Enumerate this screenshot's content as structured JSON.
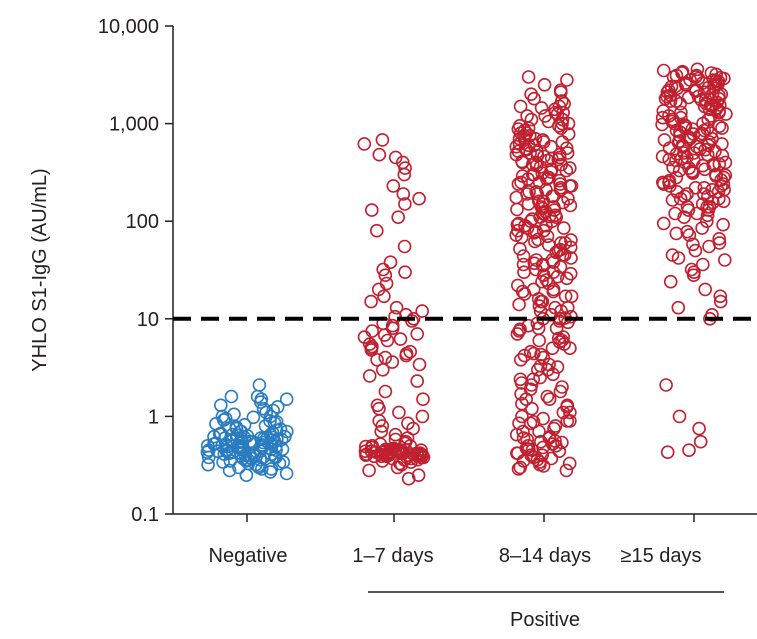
{
  "chart_data": {
    "type": "scatter",
    "y_scale": "log",
    "ylabel": "YHLO S1-IgG (AU/mL)",
    "xlabel": "",
    "ylim": [
      0.1,
      10000
    ],
    "y_ticks": [
      0.1,
      1,
      10,
      100,
      1000,
      10000
    ],
    "y_tick_labels": [
      "0.1",
      "1",
      "10",
      "100",
      "1,000",
      "10,000"
    ],
    "grid": false,
    "legend": "none",
    "threshold": 10,
    "categories": [
      "Negative",
      "1–7 days",
      "8–14 days",
      "≥15 days"
    ],
    "group_label": "Positive",
    "group_categories": [
      "1–7 days",
      "8–14 days",
      "≥15 days"
    ],
    "colors": {
      "negative": "#2a7cc0",
      "positive": "#c0202f",
      "threshold": "#000000",
      "axis": "#231f20"
    },
    "series": [
      {
        "category": "Negative",
        "color": "#2a7cc0",
        "values": [
          2.1,
          1.6,
          1.6,
          1.5,
          1.5,
          1.4,
          1.3,
          1.25,
          1.2,
          1.15,
          1.1,
          1.05,
          1.0,
          1.0,
          0.98,
          0.95,
          0.92,
          0.9,
          0.88,
          0.86,
          0.84,
          0.82,
          0.8,
          0.78,
          0.76,
          0.75,
          0.74,
          0.72,
          0.7,
          0.7,
          0.68,
          0.67,
          0.66,
          0.65,
          0.64,
          0.63,
          0.62,
          0.61,
          0.6,
          0.6,
          0.59,
          0.58,
          0.57,
          0.56,
          0.55,
          0.55,
          0.54,
          0.53,
          0.52,
          0.52,
          0.51,
          0.5,
          0.5,
          0.49,
          0.48,
          0.48,
          0.47,
          0.46,
          0.46,
          0.45,
          0.45,
          0.44,
          0.44,
          0.43,
          0.43,
          0.42,
          0.42,
          0.41,
          0.41,
          0.4,
          0.4,
          0.39,
          0.39,
          0.38,
          0.38,
          0.37,
          0.37,
          0.36,
          0.36,
          0.35,
          0.35,
          0.34,
          0.34,
          0.33,
          0.33,
          0.32,
          0.32,
          0.31,
          0.3,
          0.3,
          0.29,
          0.29,
          0.28,
          0.27,
          0.26,
          0.25,
          0.5,
          0.55,
          0.6,
          0.45,
          0.42,
          0.48,
          0.52,
          0.58,
          0.62,
          0.44,
          0.47,
          0.53,
          0.57,
          0.49,
          0.51,
          0.46,
          0.54,
          0.56,
          0.5,
          0.43,
          0.59,
          0.61,
          0.65,
          0.7,
          0.4,
          0.38
        ]
      },
      {
        "category": "1–7 days",
        "color": "#c0202f",
        "values": [
          680,
          620,
          480,
          450,
          400,
          350,
          300,
          230,
          190,
          170,
          150,
          130,
          110,
          80,
          55,
          38,
          32,
          30,
          28,
          23,
          20,
          17,
          15,
          13,
          12,
          11,
          10.5,
          10,
          9.5,
          9,
          8.5,
          8,
          7.5,
          7,
          6.8,
          6.5,
          6.2,
          6,
          5.5,
          5.2,
          5,
          4.8,
          4.6,
          4.4,
          4.2,
          4,
          3.8,
          3.6,
          3.4,
          3,
          2.6,
          2.3,
          1.8,
          1.5,
          1.3,
          1.2,
          1.1,
          1.0,
          0.9,
          0.85,
          0.8,
          0.75,
          0.7,
          0.65,
          0.6,
          0.58,
          0.55,
          0.53,
          0.52,
          0.5,
          0.5,
          0.49,
          0.48,
          0.47,
          0.46,
          0.46,
          0.45,
          0.45,
          0.44,
          0.44,
          0.44,
          0.43,
          0.43,
          0.43,
          0.42,
          0.42,
          0.42,
          0.42,
          0.41,
          0.41,
          0.41,
          0.41,
          0.4,
          0.4,
          0.4,
          0.4,
          0.4,
          0.39,
          0.39,
          0.39,
          0.39,
          0.38,
          0.38,
          0.38,
          0.37,
          0.37,
          0.36,
          0.36,
          0.35,
          0.34,
          0.33,
          0.32,
          0.3,
          0.28,
          0.25,
          0.23,
          0.44,
          0.42,
          0.43,
          0.41,
          0.4,
          0.45,
          0.46,
          0.42,
          0.43,
          0.44
        ]
      },
      {
        "category": "8–14 days",
        "color": "#c0202f",
        "values": [
          3000,
          2800,
          2200,
          2000,
          1800,
          1600,
          1500,
          1400,
          1300,
          1200,
          1100,
          1000,
          950,
          900,
          850,
          800,
          750,
          700,
          680,
          650,
          620,
          600,
          580,
          560,
          540,
          520,
          500,
          480,
          460,
          440,
          420,
          400,
          380,
          360,
          340,
          320,
          300,
          290,
          280,
          270,
          260,
          250,
          240,
          230,
          220,
          210,
          200,
          190,
          180,
          170,
          160,
          150,
          145,
          140,
          135,
          130,
          125,
          120,
          115,
          110,
          105,
          100,
          95,
          90,
          85,
          80,
          76,
          72,
          68,
          64,
          60,
          57,
          54,
          51,
          48,
          45,
          42,
          40,
          38,
          36,
          34,
          32,
          30,
          28,
          26,
          24,
          22,
          20,
          19,
          18,
          17,
          16,
          15,
          14,
          13,
          12,
          11,
          10.5,
          10,
          9.5,
          9,
          8.5,
          8,
          7.5,
          7,
          6.5,
          6,
          5.5,
          5,
          4.6,
          4.2,
          3.8,
          3.4,
          3,
          2.7,
          2.4,
          2.1,
          1.9,
          1.7,
          1.5,
          1.35,
          1.2,
          1.1,
          1,
          0.95,
          0.9,
          0.85,
          0.8,
          0.75,
          0.7,
          0.65,
          0.6,
          0.58,
          0.56,
          0.54,
          0.52,
          0.5,
          0.48,
          0.46,
          0.44,
          0.42,
          0.4,
          0.38,
          0.36,
          0.34,
          0.32,
          0.3,
          0.29,
          0.28,
          1500,
          1200,
          1000,
          900,
          800,
          700,
          600,
          500,
          450,
          400,
          350,
          300,
          250,
          200,
          180,
          160,
          140,
          120,
          100,
          90,
          80,
          70,
          60,
          50,
          45,
          40,
          35,
          30,
          25,
          20,
          15,
          12,
          10,
          8,
          6,
          5,
          4,
          3,
          2.5,
          2,
          1.6,
          1.3,
          1.1,
          0.9,
          0.7,
          0.6,
          0.5,
          0.45,
          0.4,
          0.35,
          1300,
          1100,
          950,
          750,
          650,
          550,
          480,
          430,
          380,
          330,
          270,
          230,
          190,
          150,
          110,
          85,
          65,
          48,
          36,
          27,
          19,
          13,
          9.2,
          6.3,
          4.4,
          3.2,
          2.2,
          1.5,
          0.85,
          0.55,
          0.42,
          0.33,
          2500,
          2100,
          1700,
          1450,
          1250,
          1050,
          880,
          780,
          680,
          580,
          510,
          470,
          410,
          370,
          310,
          280,
          240,
          210,
          175,
          155,
          132,
          112,
          92,
          78,
          62,
          52,
          44,
          37,
          29,
          23,
          17,
          13.5,
          10.2,
          7.8,
          5.8,
          4.3,
          3.3,
          2.4,
          1.8,
          1.25,
          0.88,
          0.62,
          0.47,
          0.37,
          0.31
        ]
      },
      {
        "category": "≥15 days",
        "color": "#c0202f",
        "values": [
          3600,
          3500,
          3400,
          3300,
          3200,
          3100,
          3000,
          2900,
          2800,
          2700,
          2600,
          2500,
          2400,
          2300,
          2200,
          2100,
          2000,
          1950,
          1900,
          1850,
          1800,
          1750,
          1700,
          1650,
          1600,
          1550,
          1500,
          1450,
          1400,
          1350,
          1300,
          1250,
          1200,
          1150,
          1100,
          1050,
          1000,
          970,
          940,
          910,
          880,
          850,
          820,
          790,
          760,
          730,
          700,
          680,
          660,
          640,
          620,
          600,
          580,
          560,
          540,
          520,
          500,
          480,
          460,
          440,
          420,
          400,
          385,
          370,
          355,
          340,
          325,
          310,
          295,
          280,
          265,
          250,
          240,
          230,
          220,
          210,
          200,
          190,
          180,
          170,
          160,
          150,
          140,
          130,
          120,
          110,
          100,
          92,
          85,
          78,
          72,
          66,
          60,
          55,
          50,
          45,
          40,
          36,
          32,
          28,
          24,
          20,
          17,
          15,
          13,
          11,
          10,
          2.1,
          1.0,
          0.75,
          0.55,
          0.45,
          0.43,
          3000,
          2800,
          2600,
          2400,
          2200,
          2000,
          1800,
          1600,
          1400,
          1200,
          1000,
          900,
          800,
          700,
          600,
          500,
          450,
          400,
          350,
          300,
          260,
          230,
          200,
          170,
          140,
          120,
          3300,
          3100,
          2900,
          2700,
          2500,
          2300,
          2100,
          1900,
          1700,
          1500,
          1300,
          1100,
          950,
          850,
          750,
          650,
          550,
          470,
          420,
          370,
          320,
          280,
          240,
          210,
          180,
          155,
          130,
          2950,
          2750,
          2550,
          2350,
          2150,
          1950,
          1750,
          1550,
          1350,
          1150,
          980,
          880,
          780,
          680,
          580,
          490,
          430,
          380,
          330,
          290,
          250,
          220,
          190,
          165,
          140,
          115,
          95,
          75,
          58,
          42,
          30
        ]
      }
    ]
  }
}
